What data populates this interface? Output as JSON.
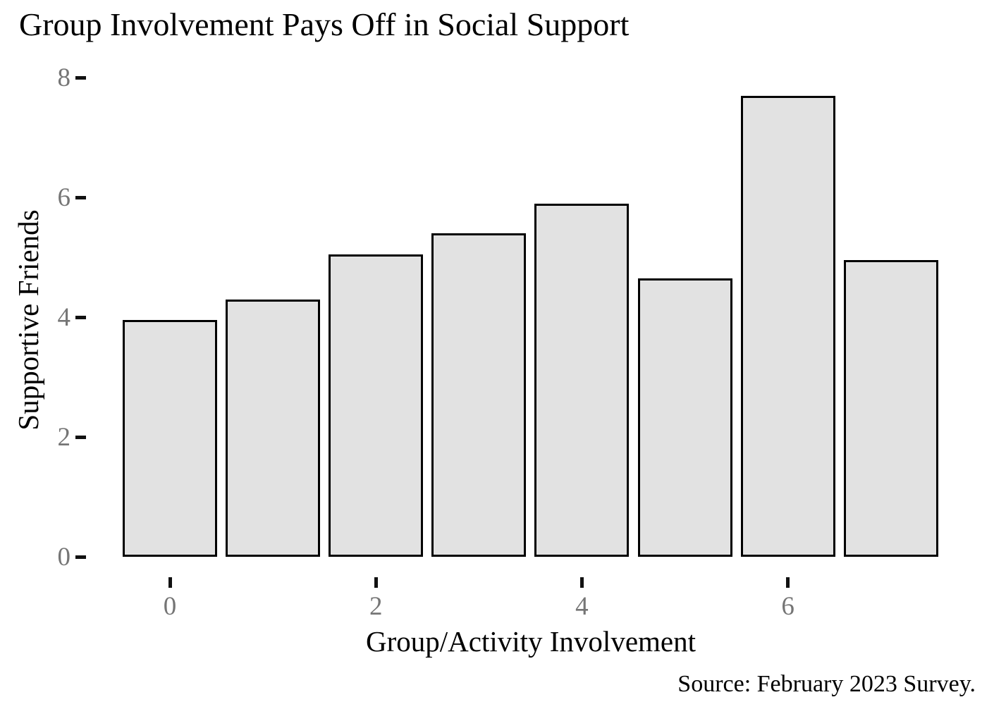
{
  "title": "Group Involvement Pays Off in Social Support",
  "colors": {
    "background": "#ffffff",
    "bar_fill": "#e2e2e2",
    "bar_border": "#000000",
    "tick_label": "#757575",
    "tick_mark": "#111111",
    "text": "#000000"
  },
  "chart_data": {
    "type": "bar",
    "title": "Group Involvement Pays Off in Social Support",
    "xlabel": "Group/Activity Involvement",
    "ylabel": "Supportive Friends",
    "source": "Source: February 2023 Survey.",
    "x": [
      0,
      1,
      2,
      3,
      4,
      5,
      6,
      7
    ],
    "values": [
      3.95,
      4.3,
      5.05,
      5.4,
      5.9,
      4.65,
      7.7,
      4.95
    ],
    "x_ticks": [
      0,
      2,
      4,
      6
    ],
    "y_ticks": [
      0,
      2,
      4,
      6,
      8
    ],
    "ylim": [
      0,
      8
    ],
    "grid": false,
    "legend": false
  }
}
